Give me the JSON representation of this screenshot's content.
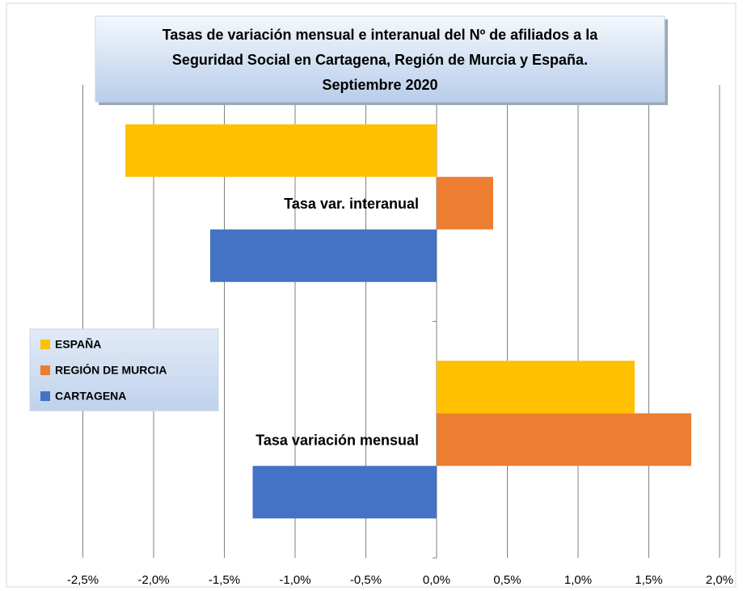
{
  "chart_data": {
    "type": "barh",
    "title": [
      "Tasas de variación mensual e interanual del Nº de afiliados a la",
      "Seguridad Social en Cartagena,  Región de Murcia y España.",
      "Septiembre 2020"
    ],
    "categories": [
      "Tasa var. interanual",
      "Tasa variación mensual"
    ],
    "series": [
      {
        "name": "ESPAÑA",
        "color": "#FFC000",
        "values": [
          -2.2,
          1.4
        ]
      },
      {
        "name": "REGIÓN DE MURCIA",
        "color": "#ED7D31",
        "values": [
          0.4,
          1.8
        ]
      },
      {
        "name": "CARTAGENA",
        "color": "#4472C4",
        "values": [
          -1.6,
          -1.3
        ]
      }
    ],
    "xlim": [
      -2.5,
      2.0
    ],
    "xticks": [
      {
        "value": -2.5,
        "label": "-2,5%"
      },
      {
        "value": -2.0,
        "label": "-2,0%"
      },
      {
        "value": -1.5,
        "label": "-1,5%"
      },
      {
        "value": -1.0,
        "label": "-1,0%"
      },
      {
        "value": -0.5,
        "label": "-0,5%"
      },
      {
        "value": 0.0,
        "label": "0,0%"
      },
      {
        "value": 0.5,
        "label": "0,5%"
      },
      {
        "value": 1.0,
        "label": "1,0%"
      },
      {
        "value": 1.5,
        "label": "1,5%"
      },
      {
        "value": 2.0,
        "label": "2,0%"
      }
    ],
    "grid": true,
    "legend": "left"
  }
}
